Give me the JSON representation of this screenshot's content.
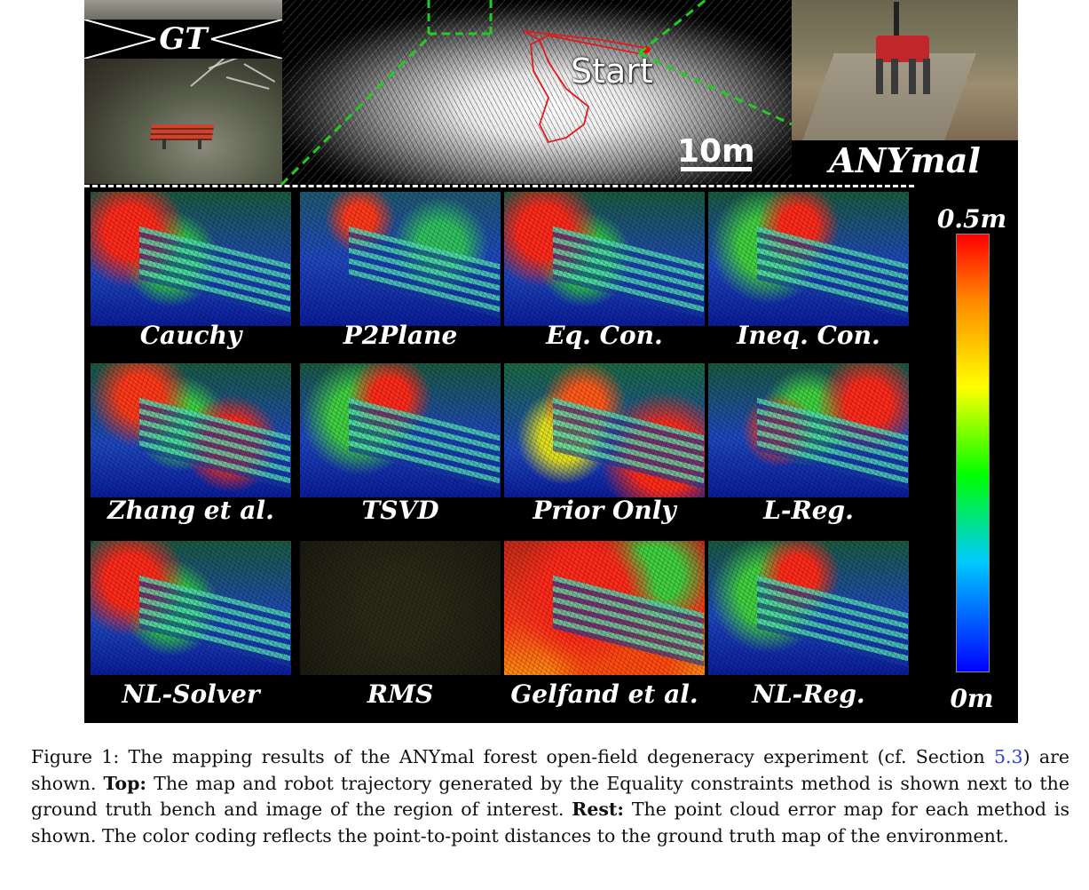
{
  "figure": {
    "top": {
      "gt_label": "GT",
      "start_label": "Start",
      "scale_label": "10m",
      "robot_label": "ANYmal"
    },
    "panels": [
      {
        "label": "Cauchy",
        "scheme": "mixed-red-left"
      },
      {
        "label": "P2Plane",
        "scheme": "blue-mostly"
      },
      {
        "label": "Eq. Con.",
        "scheme": "mixed-red-left"
      },
      {
        "label": "Ineq. Con.",
        "scheme": "mixed-red-top"
      },
      {
        "label": "Zhang et al.",
        "scheme": "red-bench"
      },
      {
        "label": "TSVD",
        "scheme": "mixed-red-top"
      },
      {
        "label": "Prior Only",
        "scheme": "red-right"
      },
      {
        "label": "L-Reg.",
        "scheme": "mixed-red-right"
      },
      {
        "label": "NL-Solver",
        "scheme": "mixed-red-left"
      },
      {
        "label": "RMS",
        "scheme": "noise-dark"
      },
      {
        "label": "Gelfand et al.",
        "scheme": "red-heavy"
      },
      {
        "label": "NL-Reg.",
        "scheme": "mixed-red-top"
      }
    ],
    "colorbar": {
      "max_label": "0.5m",
      "min_label": "0m",
      "colors": [
        "#ff0000",
        "#ff8800",
        "#ffff00",
        "#00ff00",
        "#00c8ff",
        "#0000ff"
      ]
    }
  },
  "caption": {
    "prefix": "Figure 1: The mapping results of the ANYmal forest open-field degeneracy experiment (cf. Section ",
    "section_ref": "5.3",
    "after_ref": ") are shown. ",
    "top_bold": "Top:",
    "top_text": " The map and robot trajectory generated by the Equality constraints method is shown next to the ground truth bench and image of the region of interest. ",
    "rest_bold": "Rest:",
    "rest_text": " The point cloud error map for each method is shown. The color coding reflects the point-to-point distances to the ground truth map of the environment."
  }
}
